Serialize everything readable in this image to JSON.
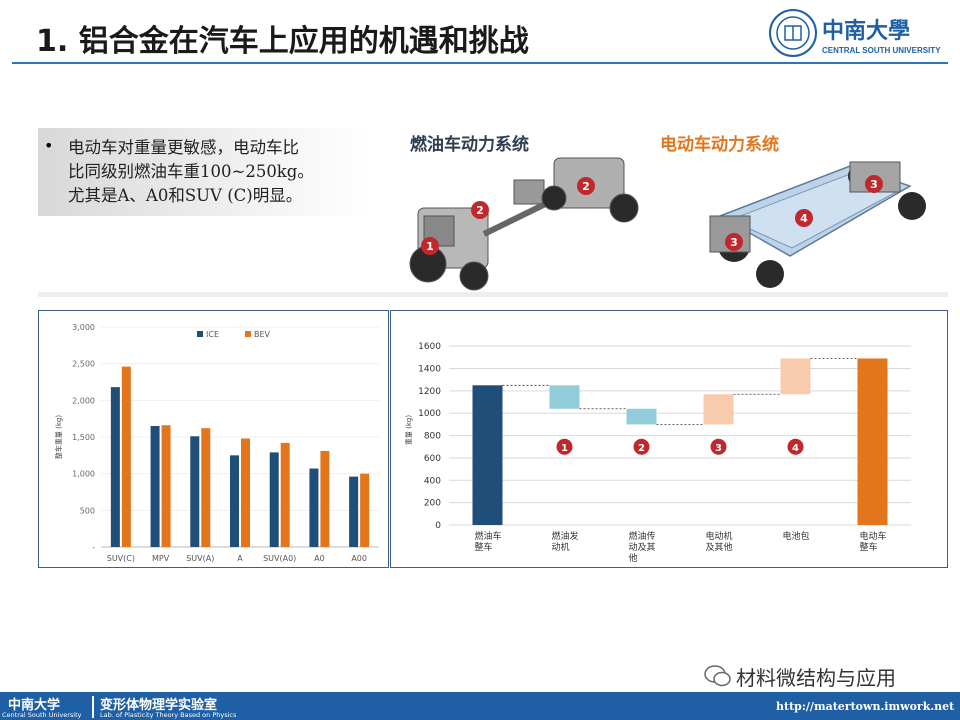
{
  "slide": {
    "title": "1. 铝合金在汽车上应用的机遇和挑战",
    "logo_cn": "中南大學",
    "logo_en": "CENTRAL SOUTH UNIVERSITY",
    "bullet": [
      "电动车对重量更敏感，电动车比",
      "比同级别燃油车重100~250kg。",
      "尤其是A、A0和SUV (C)明显。"
    ],
    "label_ice": "燃油车动力系统",
    "label_ev": "电动车动力系统",
    "markers_ice": [
      "1",
      "2",
      "2"
    ],
    "markers_ev": [
      "3",
      "4",
      "3"
    ]
  },
  "footer": {
    "univ_cn": "中南大学",
    "univ_en": "Central South University",
    "lab_cn": "变形体物理学实验室",
    "lab_en": "Lab. of Plasticity Theory Based on Physics",
    "url": "http://matertown.imwork.net",
    "wechat": "材料微结构与应用"
  },
  "colors": {
    "ice": "#1f4e79",
    "bev": "#e3761c",
    "teal": "#92cddc",
    "peach": "#f8cbad",
    "accent": "#2f74b5",
    "marker": "#c0282d"
  },
  "chart_data": [
    {
      "type": "bar",
      "title": "",
      "xlabel": "",
      "ylabel": "整车重量 (kg)",
      "ylim": [
        0,
        3000
      ],
      "yticks": [
        "-",
        "500",
        "1,000",
        "1,500",
        "2,000",
        "2,500",
        "3,000"
      ],
      "categories": [
        "SUV(C)",
        "MPV",
        "SUV(A)",
        "A",
        "SUV(A0)",
        "A0",
        "A00"
      ],
      "series": [
        {
          "name": "ICE",
          "values": [
            2180,
            1650,
            1510,
            1250,
            1290,
            1070,
            960
          ]
        },
        {
          "name": "BEV",
          "values": [
            2460,
            1660,
            1620,
            1480,
            1420,
            1310,
            1000
          ]
        }
      ],
      "legend": "top"
    },
    {
      "type": "bar",
      "subtype": "waterfall",
      "title": "",
      "xlabel": "",
      "ylabel": "重量 (kg)",
      "ylim": [
        0,
        1700
      ],
      "yticks": [
        "0",
        "200",
        "400",
        "600",
        "800",
        "1000",
        "1200",
        "1400",
        "1600"
      ],
      "categories": [
        "燃油车整车",
        "燃油发动机",
        "燃油传动及其他",
        "电动机及其他",
        "电池包",
        "电动车整车"
      ],
      "bars": [
        {
          "label": "燃油车整车",
          "start": 0,
          "end": 1250,
          "kind": "total-ice"
        },
        {
          "label": "燃油发动机",
          "start": 1040,
          "end": 1250,
          "kind": "decrease"
        },
        {
          "label": "燃油传动及其他",
          "start": 900,
          "end": 1040,
          "kind": "decrease"
        },
        {
          "label": "电动机及其他",
          "start": 900,
          "end": 1170,
          "kind": "increase"
        },
        {
          "label": "电池包",
          "start": 1170,
          "end": 1490,
          "kind": "increase"
        },
        {
          "label": "电动车整车",
          "start": 0,
          "end": 1490,
          "kind": "total-ev"
        }
      ],
      "markers": [
        "1",
        "2",
        "3",
        "4"
      ],
      "marker_level": 700
    }
  ]
}
